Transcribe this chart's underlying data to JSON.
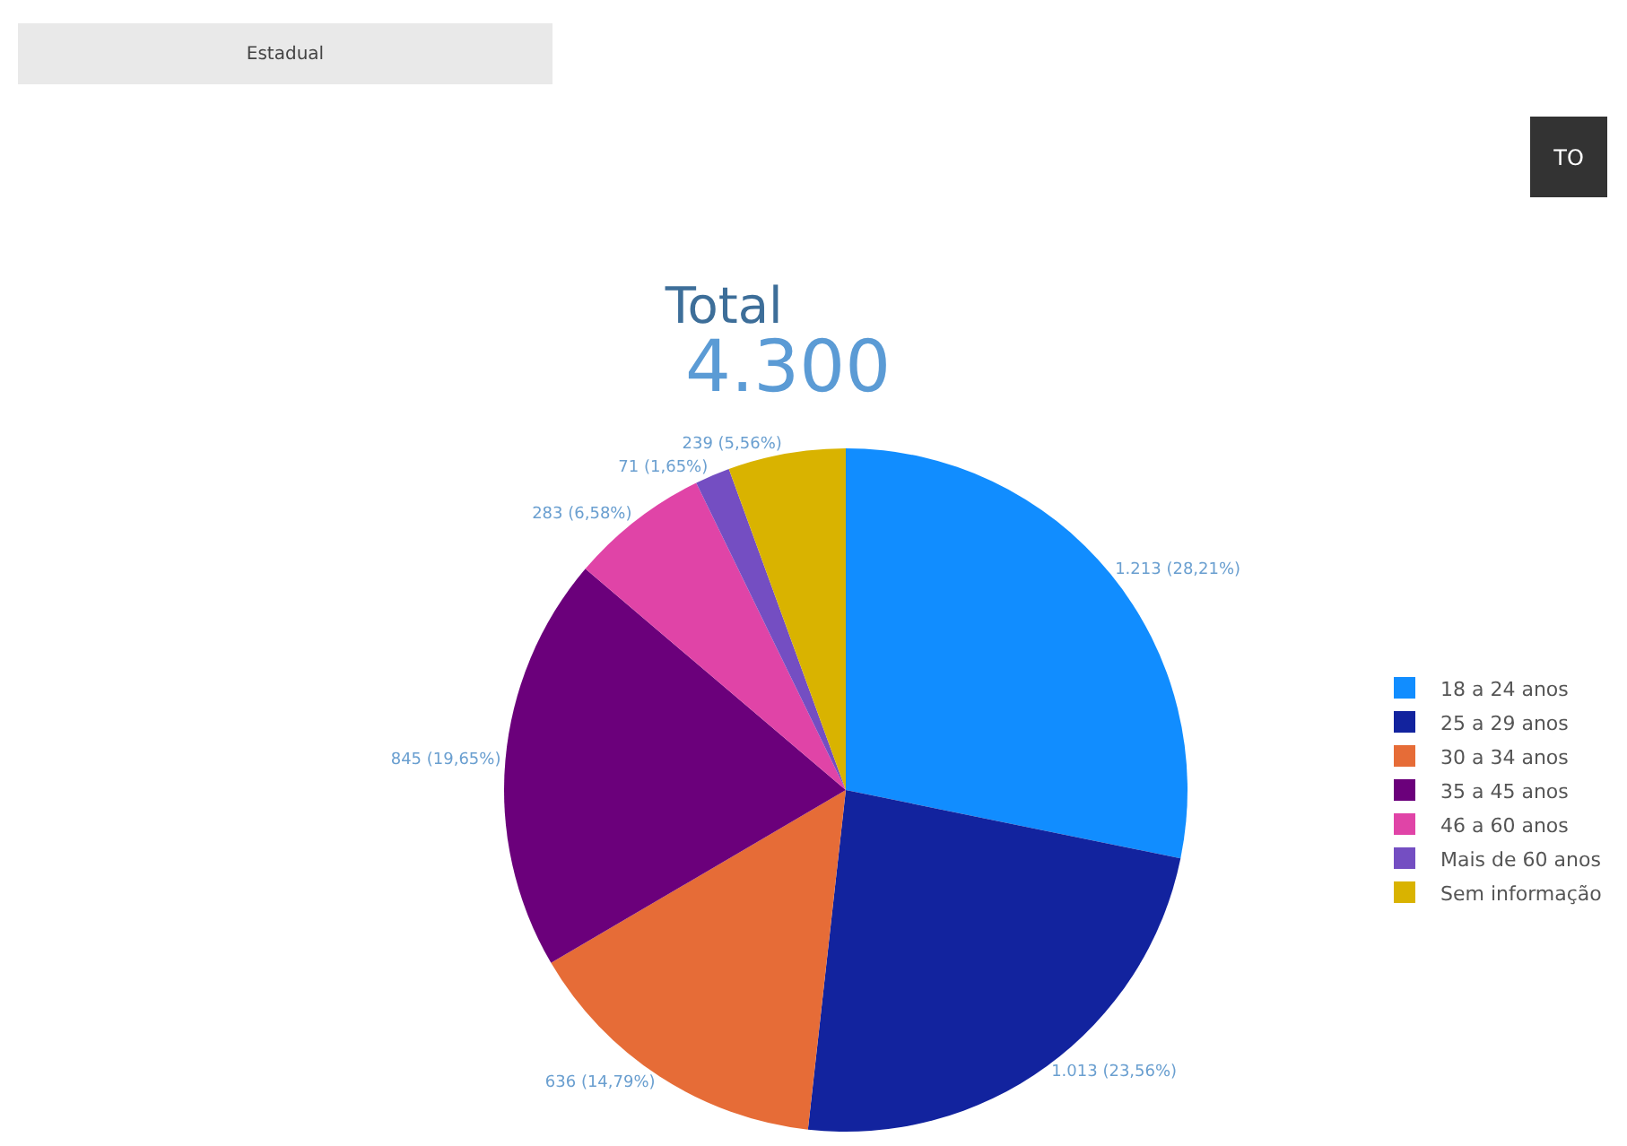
{
  "chart_data": {
    "type": "pie",
    "title": "Total",
    "subtitle": "4.300",
    "categories": [
      "18 a 24 anos",
      "25 a 29 anos",
      "30 a 34 anos",
      "35 a 45 anos",
      "46 a 60 anos",
      "Mais de 60 anos",
      "Sem informação"
    ],
    "values": [
      1213,
      1013,
      636,
      845,
      283,
      71,
      239
    ],
    "colors": [
      "#118dff",
      "#12239e",
      "#e66c37",
      "#6b007b",
      "#e044a7",
      "#744ec2",
      "#d9b300"
    ],
    "value_labels": [
      "1.213 (28,21%)",
      "1.013 (23,56%)",
      "636 (14,79%)",
      "845 (19,65%)",
      "283 (6,58%)",
      "71 (1,65%)",
      "239 (5,56%)"
    ],
    "legend": "right",
    "annotations": [
      "Estadual",
      "TO"
    ]
  }
}
